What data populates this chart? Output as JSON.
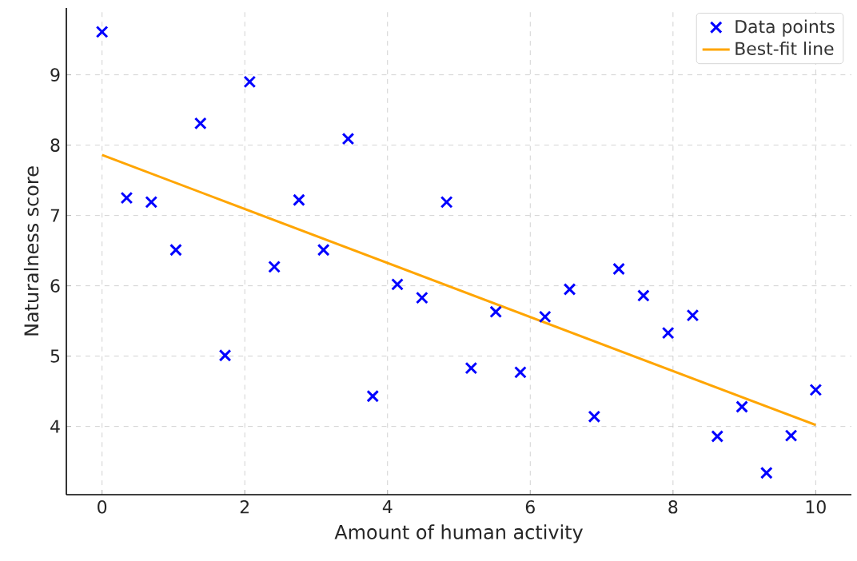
{
  "chart_data": {
    "type": "scatter",
    "xlabel": "Amount of human activity",
    "ylabel": "Naturalness score",
    "xlim": [
      -0.5,
      10.5
    ],
    "ylim": [
      3.03,
      9.95
    ],
    "xticks": [
      0,
      2,
      4,
      6,
      8,
      10
    ],
    "yticks": [
      4,
      5,
      6,
      7,
      8,
      9
    ],
    "grid": true,
    "legend": "top right",
    "series": [
      {
        "name": "Data points",
        "marker": "cross",
        "color": "#0000ff",
        "x": [
          0,
          0.345,
          0.69,
          1.034,
          1.379,
          1.724,
          2.069,
          2.414,
          2.759,
          3.103,
          3.448,
          3.793,
          4.138,
          4.483,
          4.828,
          5.172,
          5.517,
          5.862,
          6.207,
          6.552,
          6.897,
          7.241,
          7.586,
          7.931,
          8.276,
          8.621,
          8.966,
          9.31,
          9.655,
          10
        ],
        "values": [
          9.61,
          7.25,
          7.19,
          6.51,
          8.31,
          5.01,
          8.9,
          6.27,
          7.22,
          6.51,
          8.09,
          4.43,
          6.02,
          5.83,
          7.19,
          4.83,
          5.63,
          4.77,
          5.56,
          5.95,
          4.14,
          6.24,
          5.86,
          5.33,
          5.58,
          3.86,
          4.28,
          3.34,
          3.87,
          4.52
        ]
      },
      {
        "name": "Best-fit line",
        "type": "line",
        "color": "#ffa500",
        "x": [
          0,
          10
        ],
        "values": [
          7.86,
          4.02
        ]
      }
    ]
  }
}
